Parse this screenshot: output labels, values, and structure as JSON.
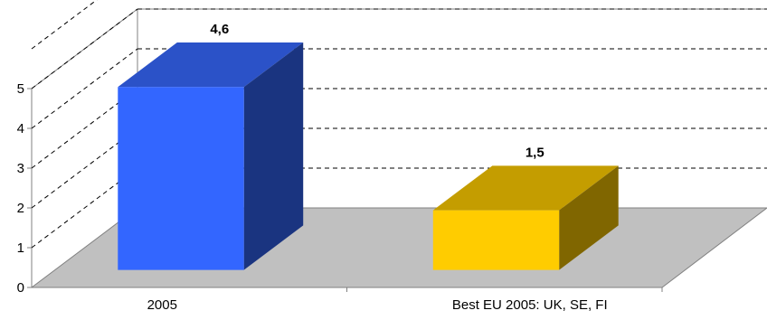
{
  "chart_data": {
    "type": "bar",
    "categories": [
      "2005",
      "Best EU 2005: UK, SE, FI"
    ],
    "values": [
      4.6,
      1.5
    ],
    "data_labels": [
      "4,6",
      "1,5"
    ],
    "y_ticks": [
      "0",
      "1",
      "2",
      "3",
      "4",
      "5"
    ],
    "ylim": [
      0,
      6
    ],
    "title": "",
    "xlabel": "",
    "ylabel": "",
    "grid": true,
    "bar_colors": [
      {
        "front": "#3366ff",
        "top": "#2b52c8",
        "side": "#1a3480"
      },
      {
        "front": "#ffcc00",
        "top": "#c49d00",
        "side": "#806600"
      }
    ],
    "floor_color": "#c0c0c0"
  }
}
